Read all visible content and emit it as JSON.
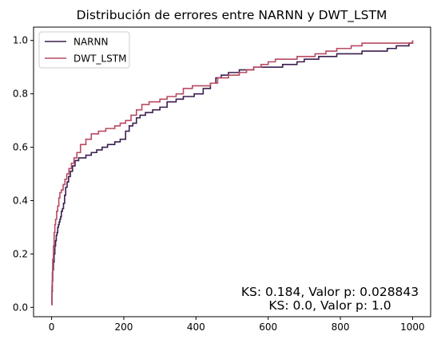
{
  "chart_data": {
    "type": "line",
    "title": "Distribución de errores entre NARNN y DWT_LSTM",
    "xlabel": "",
    "ylabel": "",
    "xlim": [
      -50,
      1050
    ],
    "ylim": [
      -0.035,
      1.05
    ],
    "xticks": [
      0,
      200,
      400,
      600,
      800,
      1000
    ],
    "yticks": [
      0.0,
      0.2,
      0.4,
      0.6,
      0.8,
      1.0
    ],
    "xtick_labels": [
      "0",
      "200",
      "400",
      "600",
      "800",
      "1000"
    ],
    "ytick_labels": [
      "0.0",
      "0.2",
      "0.4",
      "0.6",
      "0.8",
      "1.0"
    ],
    "grid": false,
    "legend_position": "top-left",
    "annotations": [
      "KS: 0.184, Valor p: 0.028843",
      "KS: 0.0, Valor p: 1.0"
    ],
    "series": [
      {
        "name": "NARNN",
        "color": "#3b1f4f",
        "step": true,
        "points": [
          [
            0,
            0.01
          ],
          [
            1,
            0.06
          ],
          [
            2,
            0.1
          ],
          [
            3,
            0.14
          ],
          [
            5,
            0.17
          ],
          [
            7,
            0.2
          ],
          [
            9,
            0.23
          ],
          [
            11,
            0.25
          ],
          [
            13,
            0.27
          ],
          [
            15,
            0.28
          ],
          [
            17,
            0.3
          ],
          [
            19,
            0.31
          ],
          [
            21,
            0.32
          ],
          [
            23,
            0.33
          ],
          [
            25,
            0.34
          ],
          [
            27,
            0.36
          ],
          [
            30,
            0.37
          ],
          [
            33,
            0.39
          ],
          [
            36,
            0.42
          ],
          [
            39,
            0.45
          ],
          [
            43,
            0.47
          ],
          [
            47,
            0.49
          ],
          [
            52,
            0.51
          ],
          [
            58,
            0.53
          ],
          [
            65,
            0.55
          ],
          [
            75,
            0.56
          ],
          [
            95,
            0.57
          ],
          [
            110,
            0.58
          ],
          [
            125,
            0.59
          ],
          [
            140,
            0.6
          ],
          [
            155,
            0.61
          ],
          [
            175,
            0.62
          ],
          [
            190,
            0.63
          ],
          [
            205,
            0.66
          ],
          [
            215,
            0.68
          ],
          [
            225,
            0.69
          ],
          [
            235,
            0.71
          ],
          [
            245,
            0.72
          ],
          [
            260,
            0.73
          ],
          [
            280,
            0.74
          ],
          [
            300,
            0.75
          ],
          [
            320,
            0.77
          ],
          [
            345,
            0.78
          ],
          [
            365,
            0.79
          ],
          [
            395,
            0.8
          ],
          [
            420,
            0.82
          ],
          [
            440,
            0.84
          ],
          [
            455,
            0.86
          ],
          [
            470,
            0.87
          ],
          [
            490,
            0.88
          ],
          [
            520,
            0.89
          ],
          [
            560,
            0.9
          ],
          [
            620,
            0.9
          ],
          [
            640,
            0.91
          ],
          [
            680,
            0.92
          ],
          [
            700,
            0.93
          ],
          [
            740,
            0.94
          ],
          [
            790,
            0.95
          ],
          [
            820,
            0.95
          ],
          [
            860,
            0.96
          ],
          [
            930,
            0.97
          ],
          [
            955,
            0.98
          ],
          [
            990,
            0.99
          ],
          [
            1000,
            1.0
          ]
        ]
      },
      {
        "name": "DWT_LSTM",
        "color": "#b84a62",
        "step": true,
        "points": [
          [
            0,
            0.01
          ],
          [
            1,
            0.08
          ],
          [
            2,
            0.13
          ],
          [
            3,
            0.18
          ],
          [
            5,
            0.23
          ],
          [
            7,
            0.28
          ],
          [
            9,
            0.31
          ],
          [
            11,
            0.33
          ],
          [
            14,
            0.36
          ],
          [
            17,
            0.38
          ],
          [
            20,
            0.41
          ],
          [
            23,
            0.43
          ],
          [
            27,
            0.44
          ],
          [
            32,
            0.46
          ],
          [
            37,
            0.48
          ],
          [
            42,
            0.5
          ],
          [
            48,
            0.52
          ],
          [
            55,
            0.54
          ],
          [
            62,
            0.56
          ],
          [
            70,
            0.58
          ],
          [
            80,
            0.61
          ],
          [
            95,
            0.63
          ],
          [
            110,
            0.65
          ],
          [
            130,
            0.66
          ],
          [
            150,
            0.67
          ],
          [
            175,
            0.68
          ],
          [
            190,
            0.69
          ],
          [
            205,
            0.7
          ],
          [
            220,
            0.72
          ],
          [
            235,
            0.74
          ],
          [
            250,
            0.76
          ],
          [
            270,
            0.77
          ],
          [
            300,
            0.78
          ],
          [
            320,
            0.79
          ],
          [
            345,
            0.8
          ],
          [
            365,
            0.82
          ],
          [
            390,
            0.83
          ],
          [
            410,
            0.83
          ],
          [
            440,
            0.84
          ],
          [
            460,
            0.86
          ],
          [
            490,
            0.87
          ],
          [
            520,
            0.88
          ],
          [
            540,
            0.89
          ],
          [
            560,
            0.9
          ],
          [
            580,
            0.91
          ],
          [
            600,
            0.92
          ],
          [
            620,
            0.93
          ],
          [
            680,
            0.94
          ],
          [
            730,
            0.95
          ],
          [
            760,
            0.96
          ],
          [
            790,
            0.97
          ],
          [
            830,
            0.98
          ],
          [
            860,
            0.99
          ],
          [
            1000,
            1.0
          ]
        ]
      }
    ]
  }
}
